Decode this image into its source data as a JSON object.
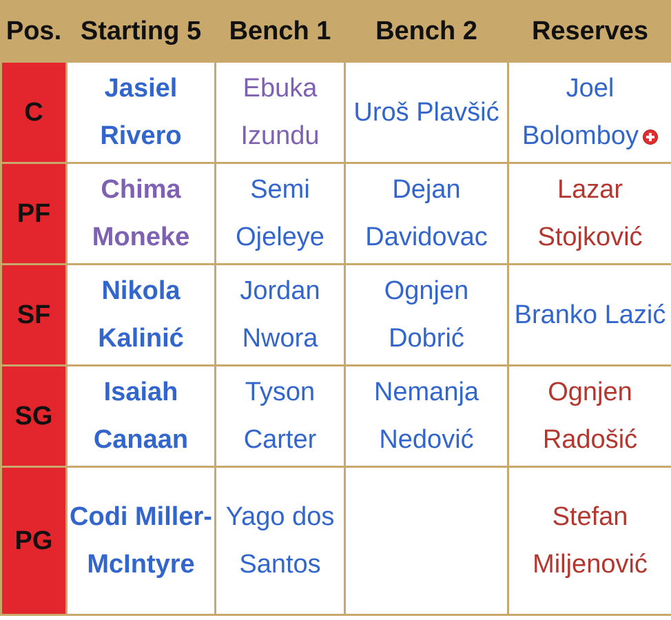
{
  "columns": [
    "Pos.",
    "Starting 5",
    "Bench 1",
    "Bench 2",
    "Reserves"
  ],
  "colors": {
    "header_bg": "#c9a96b",
    "position_bg": "#e3262d",
    "link_blue": "#3366cc",
    "link_purple": "#7f61b3",
    "link_red": "#b3372f"
  },
  "rows": [
    {
      "pos": "C",
      "starting": {
        "name": "Jasiel Rivero",
        "color": "blue"
      },
      "bench1": {
        "name": "Ebuka Izundu",
        "color": "purple"
      },
      "bench2": {
        "name": "Uroš Plavšić",
        "color": "blue"
      },
      "reserves": {
        "name": "Joel Bolomboy",
        "color": "blue",
        "icon": "injury-cross-icon"
      }
    },
    {
      "pos": "PF",
      "starting": {
        "name": "Chima Moneke",
        "color": "purple"
      },
      "bench1": {
        "name": "Semi Ojeleye",
        "color": "blue"
      },
      "bench2": {
        "name": "Dejan Davidovac",
        "color": "blue"
      },
      "reserves": {
        "name": "Lazar Stojković",
        "color": "red"
      }
    },
    {
      "pos": "SF",
      "starting": {
        "name": "Nikola Kalinić",
        "color": "blue"
      },
      "bench1": {
        "name": "Jordan Nwora",
        "color": "blue"
      },
      "bench2": {
        "name": "Ognjen Dobrić",
        "color": "blue"
      },
      "reserves": {
        "name": "Branko Lazić",
        "color": "blue"
      }
    },
    {
      "pos": "SG",
      "starting": {
        "name": "Isaiah Canaan",
        "color": "blue"
      },
      "bench1": {
        "name": "Tyson Carter",
        "color": "blue"
      },
      "bench2": {
        "name": "Nemanja Nedović",
        "color": "blue"
      },
      "reserves": {
        "name": "Ognjen Radošić",
        "color": "red"
      }
    },
    {
      "pos": "PG",
      "starting": {
        "name": "Codi Miller-McIntyre",
        "color": "blue"
      },
      "bench1": {
        "name": "Yago dos Santos",
        "color": "blue"
      },
      "bench2": {
        "name": "",
        "color": "blue"
      },
      "reserves": {
        "name": "Stefan Miljenović",
        "color": "red"
      }
    }
  ]
}
